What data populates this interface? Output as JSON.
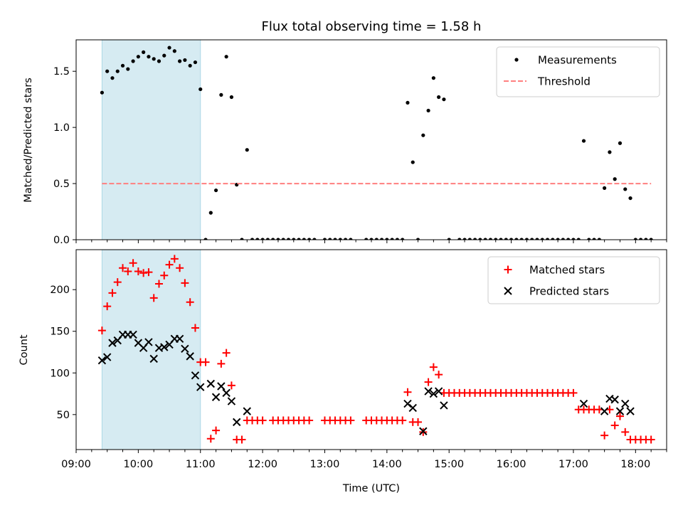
{
  "chart_data": [
    {
      "type": "scatter",
      "title": "Flux total observing time = 1.58 h",
      "xlabel": "",
      "ylabel": "Matched/Predicted stars",
      "xlim": [
        "09:00",
        "18:30"
      ],
      "ylim": [
        0,
        1.78
      ],
      "x_ticks": [
        "09:00",
        "10:00",
        "11:00",
        "12:00",
        "13:00",
        "14:00",
        "15:00",
        "16:00",
        "17:00",
        "18:00"
      ],
      "y_ticks": [
        "0.0",
        "0.5",
        "1.0",
        "1.5"
      ],
      "shaded_span": [
        "09:25",
        "11:00"
      ],
      "legend_position": "top-right",
      "series": [
        {
          "name": "Measurements",
          "kind": "scatter",
          "color": "#000000",
          "points": [
            [
              "09:25",
              1.31
            ],
            [
              "09:30",
              1.5
            ],
            [
              "09:35",
              1.44
            ],
            [
              "09:40",
              1.5
            ],
            [
              "09:45",
              1.55
            ],
            [
              "09:50",
              1.52
            ],
            [
              "09:55",
              1.59
            ],
            [
              "10:00",
              1.63
            ],
            [
              "10:05",
              1.67
            ],
            [
              "10:10",
              1.63
            ],
            [
              "10:15",
              1.61
            ],
            [
              "10:20",
              1.59
            ],
            [
              "10:25",
              1.64
            ],
            [
              "10:30",
              1.71
            ],
            [
              "10:35",
              1.68
            ],
            [
              "10:40",
              1.59
            ],
            [
              "10:45",
              1.6
            ],
            [
              "10:50",
              1.55
            ],
            [
              "10:55",
              1.58
            ],
            [
              "11:00",
              1.34
            ],
            [
              "11:05",
              0.0
            ],
            [
              "11:10",
              0.24
            ],
            [
              "11:15",
              0.44
            ],
            [
              "11:20",
              1.29
            ],
            [
              "11:25",
              1.63
            ],
            [
              "11:30",
              1.27
            ],
            [
              "11:35",
              0.49
            ],
            [
              "11:40",
              0.0
            ],
            [
              "11:45",
              0.8
            ],
            [
              "11:50",
              0.0
            ],
            [
              "11:55",
              0.0
            ],
            [
              "12:00",
              0.0
            ],
            [
              "12:05",
              0.0
            ],
            [
              "12:10",
              0.0
            ],
            [
              "12:15",
              0.0
            ],
            [
              "12:20",
              0.0
            ],
            [
              "12:25",
              0.0
            ],
            [
              "12:30",
              0.0
            ],
            [
              "12:35",
              0.0
            ],
            [
              "12:40",
              0.0
            ],
            [
              "12:45",
              0.0
            ],
            [
              "12:50",
              0.0
            ],
            [
              "13:00",
              0.0
            ],
            [
              "13:05",
              0.0
            ],
            [
              "13:10",
              0.0
            ],
            [
              "13:15",
              0.0
            ],
            [
              "13:20",
              0.0
            ],
            [
              "13:25",
              0.0
            ],
            [
              "13:40",
              0.0
            ],
            [
              "13:45",
              0.0
            ],
            [
              "13:50",
              0.0
            ],
            [
              "13:55",
              0.0
            ],
            [
              "14:00",
              0.0
            ],
            [
              "14:05",
              0.0
            ],
            [
              "14:10",
              0.0
            ],
            [
              "14:15",
              0.0
            ],
            [
              "14:20",
              1.22
            ],
            [
              "14:25",
              0.69
            ],
            [
              "14:30",
              0.0
            ],
            [
              "14:35",
              0.93
            ],
            [
              "14:40",
              1.15
            ],
            [
              "14:45",
              1.44
            ],
            [
              "14:50",
              1.27
            ],
            [
              "14:55",
              1.25
            ],
            [
              "15:00",
              0.0
            ],
            [
              "15:10",
              0.0
            ],
            [
              "15:15",
              0.0
            ],
            [
              "15:20",
              0.0
            ],
            [
              "15:25",
              0.0
            ],
            [
              "15:30",
              0.0
            ],
            [
              "15:35",
              0.0
            ],
            [
              "15:40",
              0.0
            ],
            [
              "15:45",
              0.0
            ],
            [
              "15:50",
              0.0
            ],
            [
              "15:55",
              0.0
            ],
            [
              "16:00",
              0.0
            ],
            [
              "16:05",
              0.0
            ],
            [
              "16:10",
              0.0
            ],
            [
              "16:15",
              0.0
            ],
            [
              "16:20",
              0.0
            ],
            [
              "16:25",
              0.0
            ],
            [
              "16:30",
              0.0
            ],
            [
              "16:35",
              0.0
            ],
            [
              "16:40",
              0.0
            ],
            [
              "16:45",
              0.0
            ],
            [
              "16:50",
              0.0
            ],
            [
              "16:55",
              0.0
            ],
            [
              "17:00",
              0.0
            ],
            [
              "17:05",
              0.0
            ],
            [
              "17:10",
              0.88
            ],
            [
              "17:15",
              0.0
            ],
            [
              "17:20",
              0.0
            ],
            [
              "17:25",
              0.0
            ],
            [
              "17:30",
              0.46
            ],
            [
              "17:35",
              0.78
            ],
            [
              "17:40",
              0.54
            ],
            [
              "17:45",
              0.86
            ],
            [
              "17:50",
              0.45
            ],
            [
              "17:55",
              0.37
            ],
            [
              "18:00",
              0.0
            ],
            [
              "18:05",
              0.0
            ],
            [
              "18:10",
              0.0
            ],
            [
              "18:15",
              0.0
            ]
          ]
        },
        {
          "name": "Threshold",
          "kind": "line",
          "style": "dashed",
          "color": "#ff7f7f",
          "points": [
            [
              "09:25",
              0.5
            ],
            [
              "18:15",
              0.5
            ]
          ]
        }
      ]
    },
    {
      "type": "scatter",
      "title": "",
      "xlabel": "Time (UTC)",
      "ylabel": "Count",
      "xlim": [
        "09:00",
        "18:30"
      ],
      "ylim": [
        8,
        248
      ],
      "x_ticks": [
        "09:00",
        "10:00",
        "11:00",
        "12:00",
        "13:00",
        "14:00",
        "15:00",
        "16:00",
        "17:00",
        "18:00"
      ],
      "y_ticks": [
        "50",
        "100",
        "150",
        "200"
      ],
      "shaded_span": [
        "09:25",
        "11:00"
      ],
      "legend_position": "top-right",
      "series": [
        {
          "name": "Matched stars",
          "marker": "+",
          "color": "#ff0000",
          "points": [
            [
              "09:25",
              151
            ],
            [
              "09:30",
              180
            ],
            [
              "09:35",
              196
            ],
            [
              "09:40",
              209
            ],
            [
              "09:45",
              226
            ],
            [
              "09:50",
              222
            ],
            [
              "09:55",
              232
            ],
            [
              "10:00",
              222
            ],
            [
              "10:05",
              220
            ],
            [
              "10:10",
              221
            ],
            [
              "10:15",
              190
            ],
            [
              "10:20",
              207
            ],
            [
              "10:25",
              217
            ],
            [
              "10:30",
              230
            ],
            [
              "10:35",
              237
            ],
            [
              "10:40",
              226
            ],
            [
              "10:45",
              208
            ],
            [
              "10:50",
              185
            ],
            [
              "10:55",
              154
            ],
            [
              "11:00",
              113
            ],
            [
              "11:05",
              113
            ],
            [
              "11:10",
              21
            ],
            [
              "11:15",
              31
            ],
            [
              "11:20",
              111
            ],
            [
              "11:25",
              124
            ],
            [
              "11:30",
              85
            ],
            [
              "11:35",
              20
            ],
            [
              "11:40",
              20
            ],
            [
              "11:45",
              43
            ],
            [
              "11:50",
              43
            ],
            [
              "11:55",
              43
            ],
            [
              "12:00",
              43
            ],
            [
              "12:10",
              43
            ],
            [
              "12:15",
              43
            ],
            [
              "12:20",
              43
            ],
            [
              "12:25",
              43
            ],
            [
              "12:30",
              43
            ],
            [
              "12:35",
              43
            ],
            [
              "12:40",
              43
            ],
            [
              "12:45",
              43
            ],
            [
              "13:00",
              43
            ],
            [
              "13:05",
              43
            ],
            [
              "13:10",
              43
            ],
            [
              "13:15",
              43
            ],
            [
              "13:20",
              43
            ],
            [
              "13:25",
              43
            ],
            [
              "13:40",
              43
            ],
            [
              "13:45",
              43
            ],
            [
              "13:50",
              43
            ],
            [
              "13:55",
              43
            ],
            [
              "14:00",
              43
            ],
            [
              "14:05",
              43
            ],
            [
              "14:10",
              43
            ],
            [
              "14:15",
              43
            ],
            [
              "14:20",
              77
            ],
            [
              "14:25",
              41
            ],
            [
              "14:30",
              41
            ],
            [
              "14:35",
              29
            ],
            [
              "14:40",
              89
            ],
            [
              "14:45",
              107
            ],
            [
              "14:50",
              98
            ],
            [
              "14:55",
              76
            ],
            [
              "15:00",
              76
            ],
            [
              "15:05",
              76
            ],
            [
              "15:10",
              76
            ],
            [
              "15:15",
              76
            ],
            [
              "15:20",
              76
            ],
            [
              "15:25",
              76
            ],
            [
              "15:30",
              76
            ],
            [
              "15:35",
              76
            ],
            [
              "15:40",
              76
            ],
            [
              "15:45",
              76
            ],
            [
              "15:50",
              76
            ],
            [
              "15:55",
              76
            ],
            [
              "16:00",
              76
            ],
            [
              "16:05",
              76
            ],
            [
              "16:10",
              76
            ],
            [
              "16:15",
              76
            ],
            [
              "16:20",
              76
            ],
            [
              "16:25",
              76
            ],
            [
              "16:30",
              76
            ],
            [
              "16:35",
              76
            ],
            [
              "16:40",
              76
            ],
            [
              "16:45",
              76
            ],
            [
              "16:50",
              76
            ],
            [
              "16:55",
              76
            ],
            [
              "17:00",
              76
            ],
            [
              "17:05",
              56
            ],
            [
              "17:10",
              56
            ],
            [
              "17:15",
              56
            ],
            [
              "17:20",
              56
            ],
            [
              "17:25",
              56
            ],
            [
              "17:30",
              25
            ],
            [
              "17:35",
              56
            ],
            [
              "17:40",
              37
            ],
            [
              "17:45",
              48
            ],
            [
              "17:50",
              29
            ],
            [
              "17:55",
              20
            ],
            [
              "18:00",
              20
            ],
            [
              "18:05",
              20
            ],
            [
              "18:10",
              20
            ],
            [
              "18:15",
              20
            ]
          ]
        },
        {
          "name": "Predicted stars",
          "marker": "x",
          "color": "#000000",
          "points": [
            [
              "09:25",
              115
            ],
            [
              "09:30",
              119
            ],
            [
              "09:35",
              136
            ],
            [
              "09:40",
              139
            ],
            [
              "09:45",
              146
            ],
            [
              "09:50",
              146
            ],
            [
              "09:55",
              146
            ],
            [
              "10:00",
              136
            ],
            [
              "10:05",
              130
            ],
            [
              "10:10",
              137
            ],
            [
              "10:15",
              117
            ],
            [
              "10:20",
              130
            ],
            [
              "10:25",
              131
            ],
            [
              "10:30",
              134
            ],
            [
              "10:35",
              141
            ],
            [
              "10:40",
              141
            ],
            [
              "10:45",
              129
            ],
            [
              "10:50",
              120
            ],
            [
              "10:55",
              97
            ],
            [
              "11:00",
              83
            ],
            [
              "11:10",
              87
            ],
            [
              "11:15",
              71
            ],
            [
              "11:20",
              84
            ],
            [
              "11:25",
              76
            ],
            [
              "11:30",
              66
            ],
            [
              "11:35",
              41
            ],
            [
              "11:45",
              54
            ],
            [
              "14:20",
              63
            ],
            [
              "14:25",
              58
            ],
            [
              "14:35",
              30
            ],
            [
              "14:40",
              78
            ],
            [
              "14:45",
              75
            ],
            [
              "14:50",
              78
            ],
            [
              "14:55",
              61
            ],
            [
              "17:10",
              63
            ],
            [
              "17:30",
              54
            ],
            [
              "17:35",
              69
            ],
            [
              "17:40",
              68
            ],
            [
              "17:45",
              54
            ],
            [
              "17:50",
              63
            ],
            [
              "17:55",
              54
            ]
          ]
        }
      ]
    }
  ]
}
